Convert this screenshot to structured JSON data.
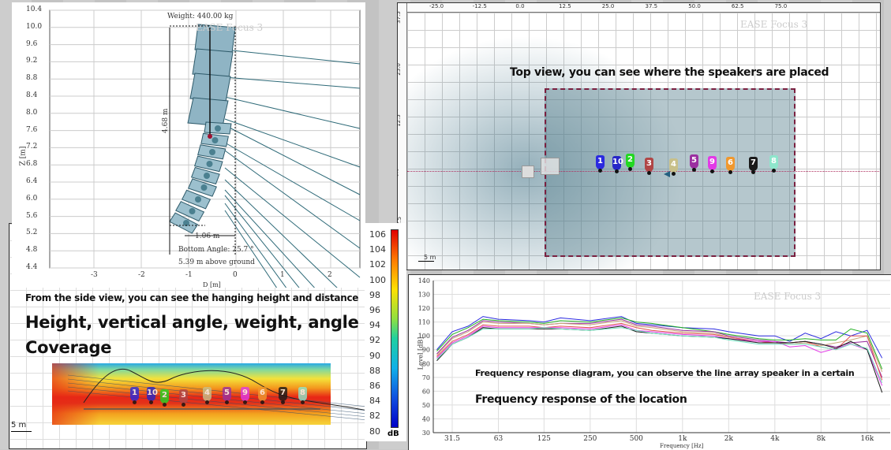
{
  "side_view": {
    "y_axis_label": "Z [m]",
    "x_axis_label": "D [m]",
    "y_ticks": [
      "10.4",
      "10.0",
      "9.6",
      "9.2",
      "8.8",
      "8.4",
      "8.0",
      "7.6",
      "7.2",
      "6.8",
      "6.4",
      "6.0",
      "5.6",
      "5.2",
      "4.8",
      "4.4"
    ],
    "x_ticks": [
      "-3",
      "-2",
      "-1",
      "0",
      "1",
      "2"
    ],
    "weight": "Weight: 440.00 kg",
    "watermark": "EASE Focus 3",
    "height_dim": "4.68 m",
    "distance_dim": "1.06 m",
    "bottom_angle": "Bottom Angle: 25.7 °",
    "above_ground": "5.39 m above ground"
  },
  "coverage": {
    "caption_small": "From the side view, you can see the hanging height and distance",
    "caption_big_1": "Height, vertical angle, weight, angle",
    "caption_big_2": "Coverage",
    "scale": "5 m"
  },
  "top_view": {
    "x_ticks": [
      "-25.0",
      "-12.5",
      "0.0",
      "12.5",
      "25.0",
      "37.5",
      "50.0",
      "62.5",
      "75.0"
    ],
    "y_ticks": [
      "37.5",
      "25.0",
      "12.5",
      "0.0",
      "-12.5"
    ],
    "watermark": "EASE Focus 3",
    "caption": "Top view, you can see where the speakers are placed",
    "scale": "5 m"
  },
  "speakers": [
    {
      "label": "1",
      "color": "#2a2ae0"
    },
    {
      "label": "10",
      "color": "#2626c8"
    },
    {
      "label": "2",
      "color": "#22d822"
    },
    {
      "label": "3",
      "color": "#b04646"
    },
    {
      "label": "4",
      "color": "#c8c08a"
    },
    {
      "label": "5",
      "color": "#9b2fa0"
    },
    {
      "label": "9",
      "color": "#e23ae6"
    },
    {
      "label": "6",
      "color": "#f0982e"
    },
    {
      "label": "7",
      "color": "#1a1a1a"
    },
    {
      "label": "8",
      "color": "#8ee6cc"
    }
  ],
  "colorbar": {
    "ticks": [
      "106",
      "104",
      "102",
      "100",
      "98",
      "96",
      "94",
      "92",
      "90",
      "88",
      "86",
      "84",
      "82",
      "80"
    ],
    "unit": "dB"
  },
  "chart_data": {
    "type": "line",
    "title": "",
    "watermark": "EASE Focus 3",
    "xlabel": "Frequency [Hz]",
    "ylabel": "Level [dB]",
    "ylim": [
      30,
      140
    ],
    "xscale": "log",
    "xlim": [
      25,
      20000
    ],
    "y_ticks": [
      "140",
      "130",
      "120",
      "110",
      "100",
      "90",
      "80",
      "70",
      "60",
      "50",
      "40",
      "30"
    ],
    "x_ticks": [
      {
        "label": "31.5",
        "v": 31.5
      },
      {
        "label": "63",
        "v": 63
      },
      {
        "label": "125",
        "v": 125
      },
      {
        "label": "250",
        "v": 250
      },
      {
        "label": "500",
        "v": 500
      },
      {
        "label": "1k",
        "v": 1000
      },
      {
        "label": "2k",
        "v": 2000
      },
      {
        "label": "4k",
        "v": 4000
      },
      {
        "label": "8k",
        "v": 8000
      },
      {
        "label": "16k",
        "v": 16000
      }
    ],
    "caption_1": "Frequency response diagram, you can observe the line array speaker in a certain",
    "caption_2": "Frequency response of the location",
    "x": [
      25,
      31.5,
      40,
      50,
      63,
      100,
      125,
      160,
      250,
      400,
      500,
      630,
      1000,
      1600,
      2000,
      3150,
      4000,
      5000,
      6300,
      8000,
      10000,
      12500,
      16000,
      20000
    ],
    "series": [
      {
        "name": "1",
        "color": "#2a2ae0",
        "values": [
          90,
          103,
          107,
          114,
          112,
          111,
          110,
          113,
          111,
          114,
          109,
          108,
          106,
          105,
          103,
          100,
          100,
          96,
          102,
          98,
          103,
          100,
          104,
          84
        ]
      },
      {
        "name": "2",
        "color": "#22b022",
        "values": [
          89,
          101,
          106,
          112,
          111,
          110,
          109,
          111,
          110,
          113,
          110,
          109,
          106,
          103,
          101,
          98,
          97,
          97,
          98,
          97,
          97,
          105,
          102,
          76
        ]
      },
      {
        "name": "5",
        "color": "#9b2fa0",
        "values": [
          87,
          99,
          104,
          111,
          110,
          109,
          108,
          109,
          109,
          112,
          108,
          107,
          104,
          103,
          100,
          97,
          96,
          95,
          96,
          94,
          92,
          95,
          96,
          70
        ]
      },
      {
        "name": "4",
        "color": "#c8a878",
        "values": [
          86,
          98,
          103,
          110,
          109,
          109,
          108,
          109,
          108,
          111,
          107,
          106,
          103,
          102,
          99,
          96,
          95,
          94,
          95,
          93,
          95,
          97,
          100,
          74
        ]
      },
      {
        "name": "3",
        "color": "#e05050",
        "values": [
          85,
          96,
          101,
          108,
          107,
          107,
          106,
          107,
          106,
          109,
          106,
          104,
          102,
          101,
          99,
          96,
          95,
          95,
          96,
          92,
          90,
          100,
          100,
          68
        ]
      },
      {
        "name": "9",
        "color": "#e23ae6",
        "values": [
          84,
          95,
          100,
          107,
          106,
          106,
          106,
          106,
          105,
          108,
          104,
          103,
          101,
          100,
          98,
          96,
          96,
          92,
          93,
          88,
          91,
          94,
          90,
          64
        ]
      },
      {
        "name": "7",
        "color": "#1a1a1a",
        "values": [
          82,
          94,
          99,
          106,
          105,
          105,
          105,
          105,
          104,
          107,
          103,
          102,
          100,
          99,
          98,
          95,
          95,
          95,
          96,
          94,
          91,
          96,
          90,
          59
        ]
      },
      {
        "name": "8",
        "color": "#70e0c0",
        "values": [
          83,
          94,
          99,
          105,
          105,
          105,
          106,
          105,
          104,
          106,
          104,
          102,
          100,
          99,
          97,
          94,
          94,
          94,
          94,
          92,
          90,
          94,
          91,
          66
        ]
      }
    ]
  }
}
